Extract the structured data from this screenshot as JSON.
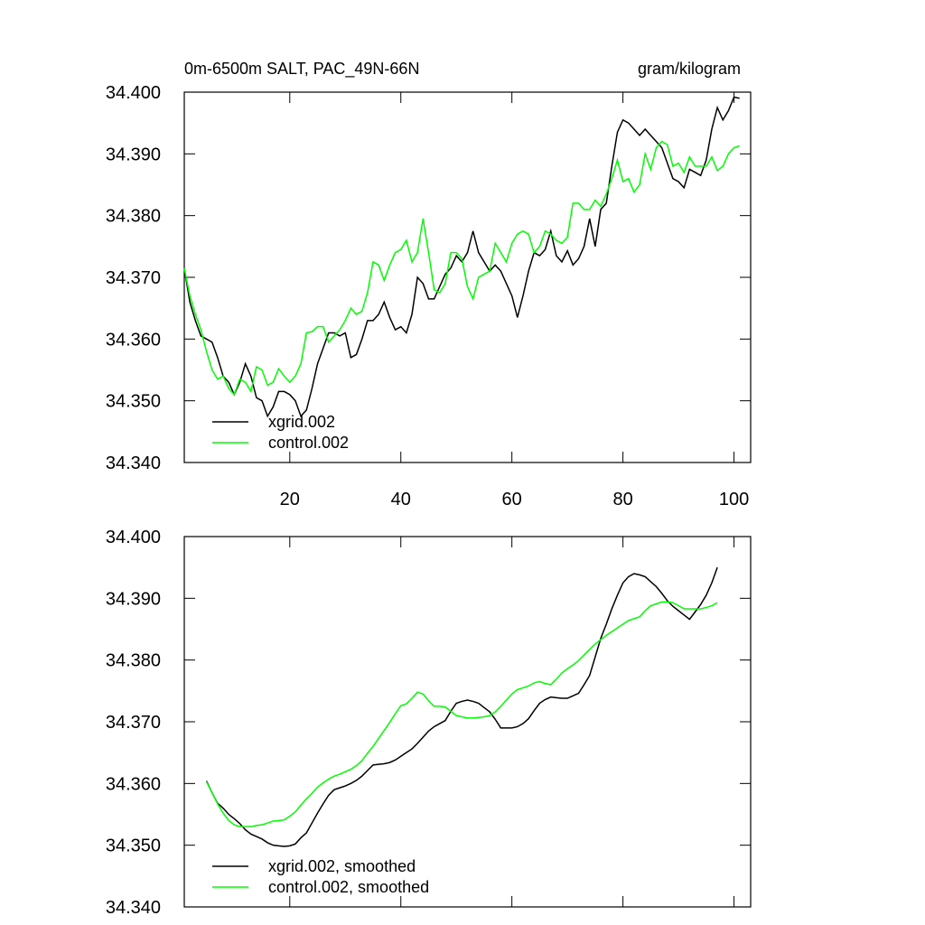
{
  "chart_data": [
    {
      "type": "line",
      "title": "0m-6500m SALT, PAC_49N-66N",
      "units": "gram/kilogram",
      "legend": "lower left",
      "xlim": [
        1,
        103
      ],
      "xticks": [
        20,
        40,
        60,
        80,
        100
      ],
      "ylim": [
        34.34,
        34.4
      ],
      "yticks": [
        {
          "value": 34.34,
          "label": "34.340"
        },
        {
          "value": 34.35,
          "label": "34.350"
        },
        {
          "value": 34.36,
          "label": "34.360"
        },
        {
          "value": 34.37,
          "label": "34.370"
        },
        {
          "value": 34.38,
          "label": "34.380"
        },
        {
          "value": 34.39,
          "label": "34.390"
        },
        {
          "value": 34.4,
          "label": "34.400"
        }
      ],
      "x": [
        1,
        2,
        3,
        4,
        5,
        6,
        7,
        8,
        9,
        10,
        11,
        12,
        13,
        14,
        15,
        16,
        17,
        18,
        19,
        20,
        21,
        22,
        23,
        24,
        25,
        26,
        27,
        28,
        29,
        30,
        31,
        32,
        33,
        34,
        35,
        36,
        37,
        38,
        39,
        40,
        41,
        42,
        43,
        44,
        45,
        46,
        47,
        48,
        49,
        50,
        51,
        52,
        53,
        54,
        55,
        56,
        57,
        58,
        59,
        60,
        61,
        62,
        63,
        64,
        65,
        66,
        67,
        68,
        69,
        70,
        71,
        72,
        73,
        74,
        75,
        76,
        77,
        78,
        79,
        80,
        81,
        82,
        83,
        84,
        85,
        86,
        87,
        88,
        89,
        90,
        91,
        92,
        93,
        94,
        95,
        96,
        97,
        98,
        99,
        100,
        101
      ],
      "series": [
        {
          "name": "xgrid.002",
          "color": "#000000",
          "values": [
            34.3715,
            34.366,
            34.363,
            34.3605,
            34.36,
            34.3595,
            34.357,
            34.354,
            34.353,
            34.351,
            34.353,
            34.356,
            34.354,
            34.3505,
            34.35,
            34.3475,
            34.349,
            34.3515,
            34.3515,
            34.351,
            34.35,
            34.3475,
            34.3485,
            34.352,
            34.356,
            34.3585,
            34.361,
            34.361,
            34.3605,
            34.361,
            34.357,
            34.3575,
            34.36,
            34.363,
            34.363,
            34.364,
            34.366,
            34.3635,
            34.3615,
            34.362,
            34.361,
            34.364,
            34.37,
            34.369,
            34.3665,
            34.3665,
            34.3685,
            34.3705,
            34.3715,
            34.3735,
            34.3725,
            34.374,
            34.3775,
            34.374,
            34.3725,
            34.371,
            34.372,
            34.371,
            34.369,
            34.367,
            34.3635,
            34.367,
            34.371,
            34.374,
            34.3735,
            34.3745,
            34.3775,
            34.3735,
            34.3725,
            34.3743,
            34.372,
            34.373,
            34.375,
            34.3795,
            34.375,
            34.381,
            34.382,
            34.388,
            34.3935,
            34.3955,
            34.395,
            34.394,
            34.393,
            34.394,
            34.393,
            34.392,
            34.391,
            34.3885,
            34.386,
            34.3855,
            34.3845,
            34.3875,
            34.387,
            34.3865,
            34.389,
            34.394,
            34.3975,
            34.3955,
            34.397,
            34.3992,
            34.399
          ]
        },
        {
          "name": "control.002",
          "color": "#00ff00",
          "values": [
            34.3715,
            34.367,
            34.364,
            34.3615,
            34.358,
            34.355,
            34.3535,
            34.354,
            34.352,
            34.351,
            34.3535,
            34.353,
            34.3515,
            34.3555,
            34.355,
            34.3525,
            34.353,
            34.3552,
            34.354,
            34.353,
            34.354,
            34.356,
            34.361,
            34.3612,
            34.362,
            34.362,
            34.3595,
            34.3605,
            34.3615,
            34.363,
            34.365,
            34.364,
            34.3645,
            34.3675,
            34.3725,
            34.372,
            34.3695,
            34.372,
            34.374,
            34.3745,
            34.376,
            34.3725,
            34.374,
            34.3795,
            34.374,
            34.368,
            34.3675,
            34.369,
            34.374,
            34.374,
            34.373,
            34.3685,
            34.3665,
            34.37,
            34.3705,
            34.371,
            34.3755,
            34.374,
            34.3725,
            34.3755,
            34.377,
            34.3775,
            34.377,
            34.374,
            34.375,
            34.3775,
            34.377,
            34.376,
            34.3755,
            34.3765,
            34.382,
            34.382,
            34.381,
            34.381,
            34.3825,
            34.3815,
            34.3835,
            34.386,
            34.389,
            34.3855,
            34.386,
            34.3838,
            34.385,
            34.39,
            34.3875,
            34.391,
            34.392,
            34.3915,
            34.388,
            34.3885,
            34.387,
            34.3895,
            34.388,
            34.388,
            34.388,
            34.3895,
            34.3873,
            34.388,
            34.39,
            34.391,
            34.3913
          ]
        }
      ]
    },
    {
      "type": "line",
      "legend": "lower left",
      "xlim": [
        1,
        103
      ],
      "xticks": [
        20,
        40,
        60,
        80,
        100
      ],
      "ylim": [
        34.34,
        34.4
      ],
      "yticks": [
        {
          "value": 34.34,
          "label": "34.340"
        },
        {
          "value": 34.35,
          "label": "34.350"
        },
        {
          "value": 34.36,
          "label": "34.360"
        },
        {
          "value": 34.37,
          "label": "34.370"
        },
        {
          "value": 34.38,
          "label": "34.380"
        },
        {
          "value": 34.39,
          "label": "34.390"
        },
        {
          "value": 34.4,
          "label": "34.400"
        }
      ],
      "x": [
        5,
        6,
        7,
        8,
        9,
        10,
        11,
        12,
        13,
        14,
        15,
        16,
        17,
        18,
        19,
        20,
        21,
        22,
        23,
        24,
        25,
        26,
        27,
        28,
        29,
        30,
        31,
        32,
        33,
        34,
        35,
        36,
        37,
        38,
        39,
        40,
        41,
        42,
        43,
        44,
        45,
        46,
        47,
        48,
        49,
        50,
        51,
        52,
        53,
        54,
        55,
        56,
        57,
        58,
        59,
        60,
        61,
        62,
        63,
        64,
        65,
        66,
        67,
        68,
        69,
        70,
        71,
        72,
        73,
        74,
        75,
        76,
        77,
        78,
        79,
        80,
        81,
        82,
        83,
        84,
        85,
        86,
        87,
        88,
        89,
        90,
        91,
        92,
        93,
        94,
        95,
        96,
        97
      ],
      "series": [
        {
          "name": "xgrid.002, smoothed",
          "color": "#000000",
          "values": [
            34.3604,
            34.3585,
            34.3568,
            34.356,
            34.355,
            34.3543,
            34.3535,
            34.3525,
            34.3518,
            34.3514,
            34.351,
            34.3504,
            34.35,
            34.3499,
            34.3498,
            34.3499,
            34.3502,
            34.3512,
            34.352,
            34.3536,
            34.3552,
            34.3567,
            34.3581,
            34.359,
            34.3593,
            34.3596,
            34.36,
            34.3605,
            34.3612,
            34.3621,
            34.363,
            34.3631,
            34.3632,
            34.3634,
            34.3638,
            34.3644,
            34.365,
            34.3656,
            34.3665,
            34.3675,
            34.3685,
            34.3692,
            34.3697,
            34.3702,
            34.3717,
            34.373,
            34.3733,
            34.3735,
            34.3733,
            34.373,
            34.3723,
            34.3716,
            34.3704,
            34.369,
            34.369,
            34.369,
            34.3692,
            34.3697,
            34.3705,
            34.3718,
            34.373,
            34.3736,
            34.374,
            34.3739,
            34.3738,
            34.3738,
            34.3742,
            34.3746,
            34.376,
            34.3775,
            34.3805,
            34.3835,
            34.3858,
            34.3883,
            34.3905,
            34.3925,
            34.3935,
            34.394,
            34.3938,
            34.3935,
            34.3927,
            34.3919,
            34.3908,
            34.3896,
            34.3887,
            34.388,
            34.3873,
            34.3866,
            34.3878,
            34.389,
            34.3905,
            34.3925,
            34.395
          ]
        },
        {
          "name": "control.002, smoothed",
          "color": "#00ff00",
          "values": [
            34.3603,
            34.3585,
            34.3567,
            34.3552,
            34.354,
            34.3533,
            34.353,
            34.353,
            34.353,
            34.3532,
            34.3533,
            34.3536,
            34.3539,
            34.354,
            34.3541,
            34.3547,
            34.3554,
            34.3565,
            34.3575,
            34.3584,
            34.3594,
            34.3601,
            34.3607,
            34.3612,
            34.3615,
            34.3619,
            34.3623,
            34.3629,
            34.3637,
            34.3649,
            34.366,
            34.3673,
            34.3686,
            34.3699,
            34.3713,
            34.3726,
            34.3729,
            34.3738,
            34.3748,
            34.3745,
            34.3734,
            34.3725,
            34.3725,
            34.3724,
            34.3717,
            34.371,
            34.3708,
            34.3706,
            34.3706,
            34.3707,
            34.3708,
            34.371,
            34.3716,
            34.3725,
            34.3735,
            34.3745,
            34.3752,
            34.3755,
            34.3758,
            34.3763,
            34.3765,
            34.3762,
            34.376,
            34.3769,
            34.3779,
            34.3786,
            34.3792,
            34.3799,
            34.3808,
            34.3817,
            34.3826,
            34.3833,
            34.384,
            34.3846,
            34.3852,
            34.3858,
            34.3864,
            34.3867,
            34.387,
            34.388,
            34.3888,
            34.3891,
            34.3894,
            34.3894,
            34.3893,
            34.3888,
            34.3883,
            34.3883,
            34.3883,
            34.3883,
            34.3885,
            34.3888,
            34.3893
          ]
        }
      ]
    }
  ]
}
